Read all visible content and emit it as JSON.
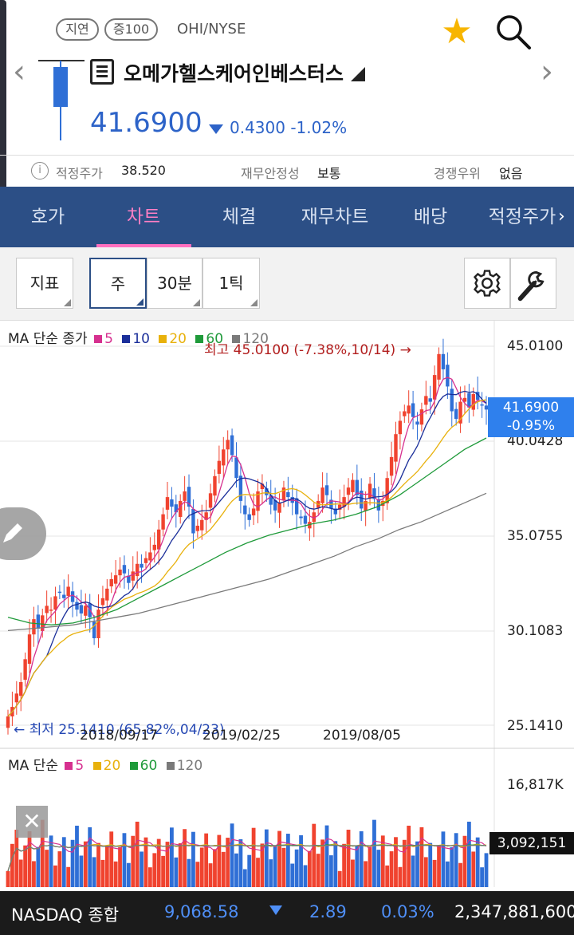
{
  "header": {
    "badge_delay": "지연",
    "badge_margin": "증100",
    "ticker": "OHI/NYSE",
    "star_icon": "star-icon",
    "search_icon": "search-icon",
    "prev_icon": "chevron-left-icon",
    "next_icon": "chevron-right-icon",
    "stock_name": "오메가헬스케어인베스터스",
    "price": "41.6900",
    "change": "0.4300 -1.02%"
  },
  "info_row": {
    "fair_price_label": "적정주가",
    "fair_price_value": "38.520",
    "stability_label": "재무안정성",
    "stability_value": "보통",
    "advantage_label": "경쟁우위",
    "advantage_value": "없음"
  },
  "tabs": [
    {
      "label": "호가"
    },
    {
      "label": "차트"
    },
    {
      "label": "체결"
    },
    {
      "label": "재무차트"
    },
    {
      "label": "배당"
    },
    {
      "label": "적정주가"
    }
  ],
  "toolbar": {
    "indicator": "지표",
    "week": "주",
    "min30": "30분",
    "tick1": "1틱",
    "settings_icon": "gear-icon",
    "tools_icon": "wrench-icon"
  },
  "colors": {
    "up": "#f0432f",
    "down": "#2f6fd6",
    "ma5": "#d6308f",
    "ma10": "#1b2f9a",
    "ma20": "#e8b10c",
    "ma60": "#1f9a3a",
    "ma120": "#7a7a7a",
    "tab_bg": "#2c4f86"
  },
  "price_legend": {
    "title": "MA 단순 종가",
    "items": [
      {
        "label": "5",
        "color": "#d6308f"
      },
      {
        "label": "10",
        "color": "#1b2f9a"
      },
      {
        "label": "20",
        "color": "#e8b10c"
      },
      {
        "label": "60",
        "color": "#1f9a3a"
      },
      {
        "label": "120",
        "color": "#7a7a7a"
      }
    ]
  },
  "volume_legend": {
    "title": "MA 단순",
    "items": [
      {
        "label": "5",
        "color": "#d6308f"
      },
      {
        "label": "20",
        "color": "#e8b10c"
      },
      {
        "label": "60",
        "color": "#1f9a3a"
      },
      {
        "label": "120",
        "color": "#7a7a7a"
      }
    ]
  },
  "chart_data": {
    "type": "candlestick",
    "y_ticks": [
      "45.0100",
      "40.0428",
      "35.0755",
      "30.1083",
      "25.1410"
    ],
    "ylim": [
      25.141,
      45.01
    ],
    "x_ticks": [
      "2018/09/17",
      "2019/02/25",
      "2019/08/05"
    ],
    "current_price": "41.6900",
    "current_change": "-0.95%",
    "high_label": "최고 45.0100 (-7.38%,10/14) →",
    "low_label": "← 최저 25.1410 (65.82%,04/23)",
    "high": 45.01,
    "low": 25.141,
    "close_series": [
      25.6,
      26.1,
      26.8,
      27.4,
      28.6,
      29.9,
      30.7,
      30.2,
      30.9,
      31.4,
      31.2,
      31.9,
      32.1,
      31.8,
      32.4,
      31.6,
      31.2,
      31.0,
      31.4,
      30.8,
      29.7,
      31.2,
      31.8,
      32.3,
      32.8,
      33.0,
      33.3,
      33.1,
      32.6,
      33.2,
      33.6,
      33.4,
      33.9,
      34.2,
      34.6,
      35.4,
      36.2,
      37.1,
      36.6,
      36.3,
      36.9,
      37.4,
      36.6,
      35.2,
      35.6,
      35.9,
      36.3,
      37.3,
      38.2,
      39.0,
      39.6,
      40.1,
      39.3,
      38.1,
      36.9,
      36.2,
      35.9,
      36.5,
      37.4,
      37.8,
      37.2,
      36.7,
      36.4,
      36.8,
      37.6,
      37.1,
      36.8,
      36.2,
      36.0,
      35.7,
      35.8,
      36.3,
      36.9,
      37.6,
      37.2,
      36.5,
      36.2,
      36.7,
      37.1,
      37.6,
      38.0,
      37.2,
      36.5,
      36.9,
      37.8,
      37.0,
      36.4,
      36.9,
      38.1,
      39.2,
      40.4,
      41.1,
      41.6,
      41.9,
      41.3,
      40.9,
      41.7,
      42.4,
      42.1,
      43.5,
      44.6,
      43.8,
      42.9,
      41.6,
      41.2,
      42.1,
      42.3,
      41.8,
      42.5,
      42.2,
      41.9,
      41.69
    ],
    "ma120_series": [
      30.1,
      30.2,
      30.3,
      30.4,
      30.6,
      30.8,
      31.0,
      31.3,
      31.6,
      31.9,
      32.2,
      32.5,
      32.8,
      33.2,
      33.6,
      34.0,
      34.5,
      34.9,
      35.4,
      35.8,
      36.3,
      36.8,
      37.3
    ],
    "ma60_series": [
      30.8,
      30.5,
      30.4,
      30.5,
      30.8,
      31.2,
      31.8,
      32.4,
      33.0,
      33.6,
      34.2,
      34.7,
      35.1,
      35.4,
      35.7,
      35.9,
      36.2,
      36.6,
      37.2,
      38.0,
      38.8,
      39.6,
      40.2
    ],
    "volume_ticks": [
      "16,817K",
      "3,092,151"
    ],
    "volume_max": 16817,
    "volume_current": "3,092,151"
  },
  "nasdaq": {
    "name": "NASDAQ 종합",
    "value": "9,068.58",
    "change": "2.89",
    "percent": "0.03%",
    "volume": "2,347,881,600"
  }
}
